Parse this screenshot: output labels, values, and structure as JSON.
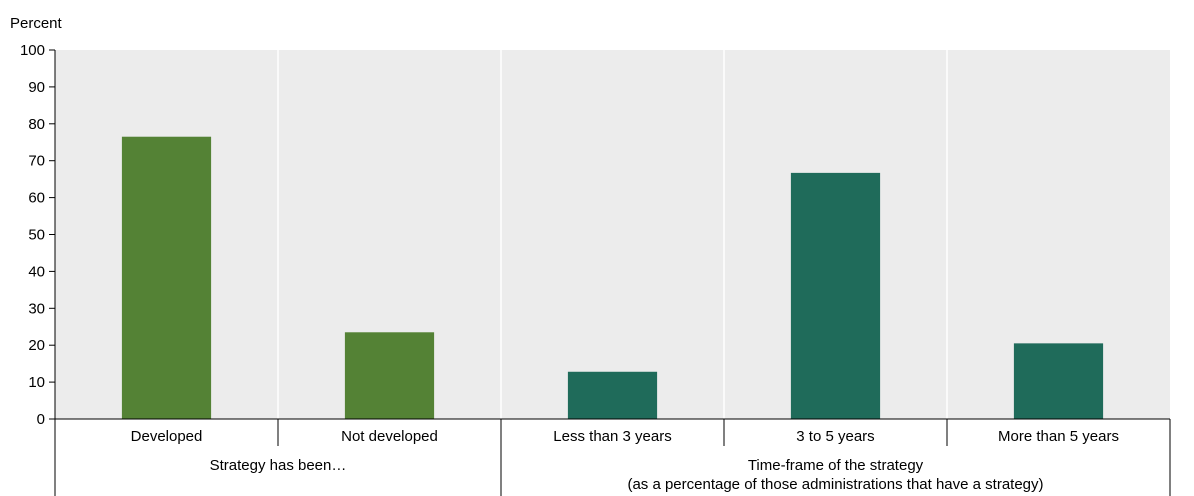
{
  "chart_data": {
    "type": "bar",
    "ylabel": "Percent",
    "ylim": [
      0,
      100
    ],
    "yticks": [
      0,
      10,
      20,
      30,
      40,
      50,
      60,
      70,
      80,
      90,
      100
    ],
    "grid": "vertical-separators",
    "categories": [
      "Developed",
      "Not developed",
      "Less than 3 years",
      "3 to 5 years",
      "More than 5 years"
    ],
    "values": [
      76.5,
      23.5,
      12.8,
      66.7,
      20.5
    ],
    "bar_colors": [
      "#548235",
      "#548235",
      "#1f6b5a",
      "#1f6b5a",
      "#1f6b5a"
    ],
    "groups": [
      {
        "label_lines": [
          "Strategy has been…"
        ],
        "categories": [
          "Developed",
          "Not developed"
        ]
      },
      {
        "label_lines": [
          "Time-frame of the strategy",
          "(as a percentage of those administrations that have a strategy)"
        ],
        "categories": [
          "Less than 3 years",
          "3 to 5 years",
          "More than 5 years"
        ]
      }
    ]
  }
}
